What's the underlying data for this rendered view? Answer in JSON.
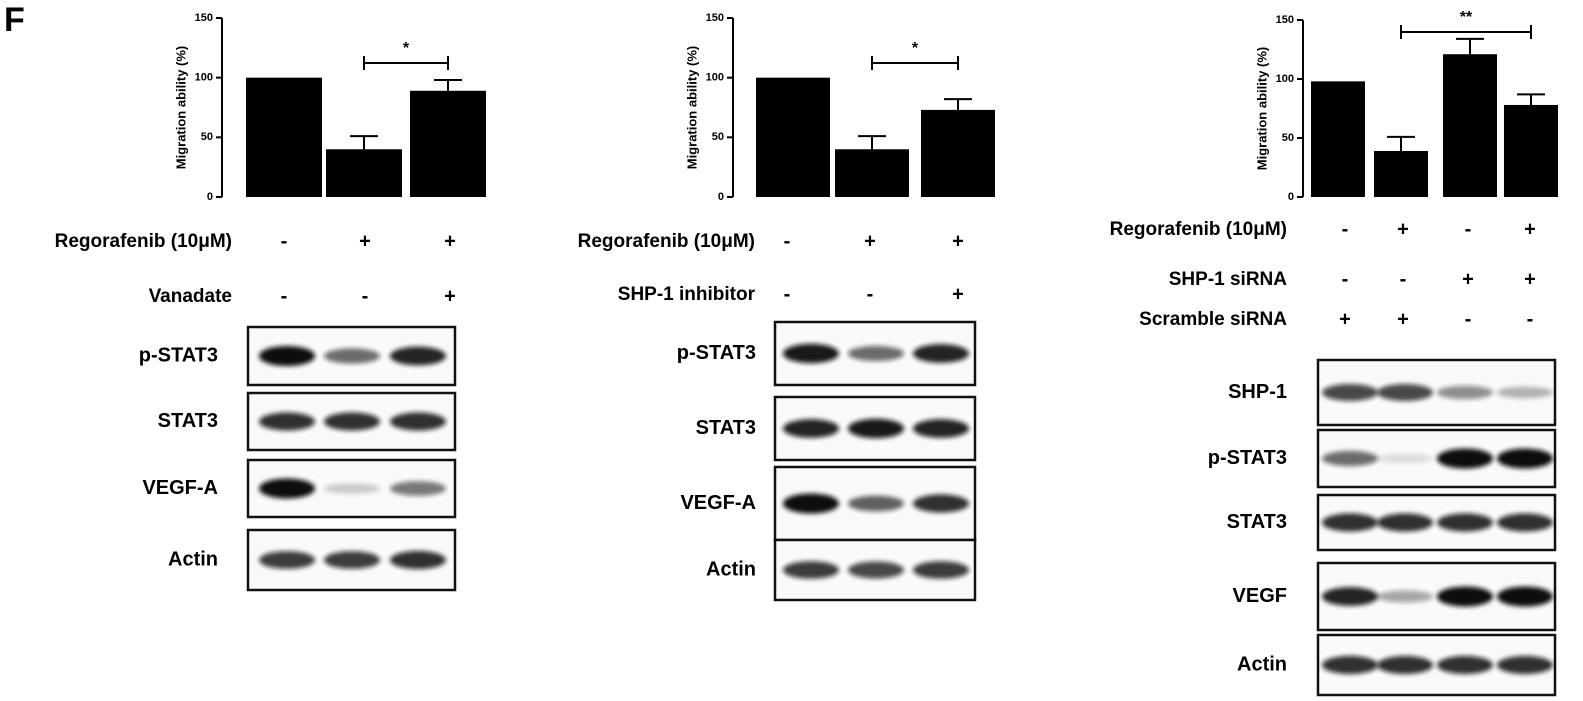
{
  "panel_label": "F",
  "chart_data": [
    {
      "type": "bar",
      "ylabel": "Migration ability (%)",
      "categories": [
        null,
        null,
        null
      ],
      "values": [
        100,
        40,
        89
      ],
      "errors": [
        null,
        11,
        9
      ],
      "color": "#000000",
      "ylim": [
        0,
        150
      ],
      "yticks": [
        0,
        50,
        100,
        150
      ],
      "annotation": "*"
    },
    {
      "type": "bar",
      "ylabel": "Migration ability (%)",
      "categories": [
        null,
        null,
        null
      ],
      "values": [
        100,
        40,
        73
      ],
      "errors": [
        null,
        11,
        9
      ],
      "color": "#000000",
      "ylim": [
        0,
        150
      ],
      "yticks": [
        0,
        50,
        100,
        150
      ],
      "annotation": "*"
    },
    {
      "type": "bar",
      "ylabel": "Migration ability (%)",
      "categories": [
        null,
        null,
        null,
        null
      ],
      "values": [
        98,
        39,
        121,
        78
      ],
      "errors": [
        null,
        12,
        13,
        9
      ],
      "color": "#000000",
      "ylim": [
        0,
        150
      ],
      "yticks": [
        0,
        50,
        100,
        150
      ],
      "annotation": "**"
    }
  ],
  "panels": [
    {
      "treatments": [
        {
          "label": "Regorafenib (10μM)",
          "signs": [
            "-",
            "+",
            "+"
          ]
        },
        {
          "label": "Vanadate",
          "signs": [
            "-",
            "-",
            "+"
          ]
        }
      ],
      "blots": [
        "p-STAT3",
        "STAT3",
        "VEGF-A",
        "Actin"
      ]
    },
    {
      "treatments": [
        {
          "label": "Regorafenib (10μM)",
          "signs": [
            "-",
            "+",
            "+"
          ]
        },
        {
          "label": "SHP-1 inhibitor",
          "signs": [
            "-",
            "-",
            "+"
          ]
        }
      ],
      "blots": [
        "p-STAT3",
        "STAT3",
        "VEGF-A",
        "Actin"
      ]
    },
    {
      "treatments": [
        {
          "label": "Regorafenib (10μM)",
          "signs": [
            "-",
            "+",
            "-",
            "+"
          ]
        },
        {
          "label": "SHP-1 siRNA",
          "signs": [
            "-",
            "-",
            "+",
            "+"
          ]
        },
        {
          "label": "Scramble siRNA",
          "signs": [
            "+",
            "+",
            "-",
            "-"
          ]
        }
      ],
      "blots": [
        "SHP-1",
        "p-STAT3",
        "STAT3",
        "VEGF",
        "Actin"
      ]
    }
  ]
}
